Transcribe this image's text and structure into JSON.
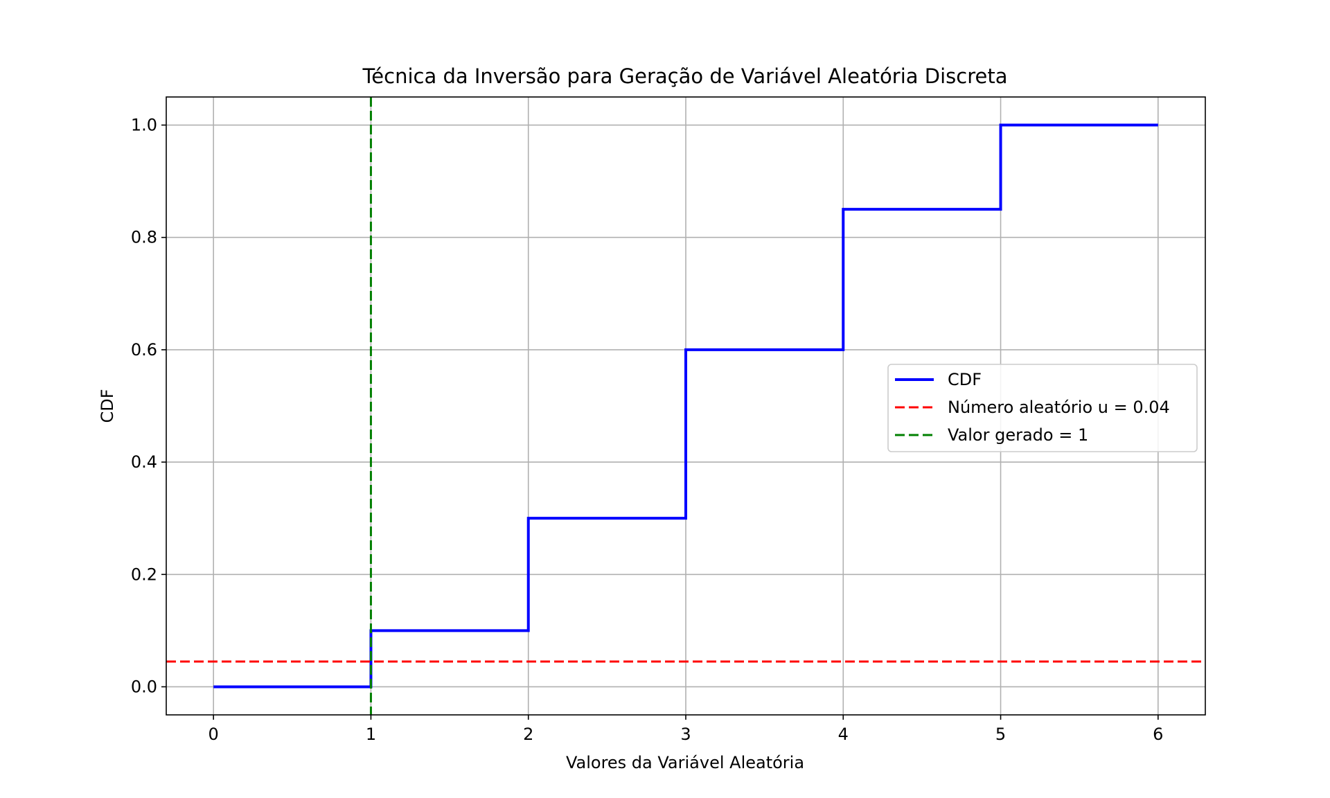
{
  "chart_data": {
    "type": "line",
    "title": "Técnica da Inversão para Geração de Variável Aleatória Discreta",
    "xlabel": "Valores da Variável Aleatória",
    "ylabel": "CDF",
    "xlim": [
      -0.3,
      6.3
    ],
    "ylim": [
      -0.05,
      1.05
    ],
    "xticks": [
      0,
      1,
      2,
      3,
      4,
      5,
      6
    ],
    "xtick_labels": [
      "0",
      "1",
      "2",
      "3",
      "4",
      "5",
      "6"
    ],
    "yticks": [
      0.0,
      0.2,
      0.4,
      0.6,
      0.8,
      1.0
    ],
    "ytick_labels": [
      "0.0",
      "0.2",
      "0.4",
      "0.6",
      "0.8",
      "1.0"
    ],
    "grid": true,
    "legend_position": "center-right",
    "series": [
      {
        "name": "CDF",
        "kind": "step-post",
        "color": "#0000ff",
        "style": "solid",
        "x": [
          0,
          1,
          2,
          3,
          4,
          5,
          6
        ],
        "y": [
          0.0,
          0.1,
          0.3,
          0.6,
          0.85,
          1.0,
          1.0
        ]
      },
      {
        "name": "Número aleatório u = 0.04",
        "kind": "hline",
        "color": "#ff0000",
        "style": "dashed",
        "y": 0.045
      },
      {
        "name": "Valor gerado = 1",
        "kind": "vline",
        "color": "#008000",
        "style": "dashed",
        "x": 1
      }
    ]
  }
}
